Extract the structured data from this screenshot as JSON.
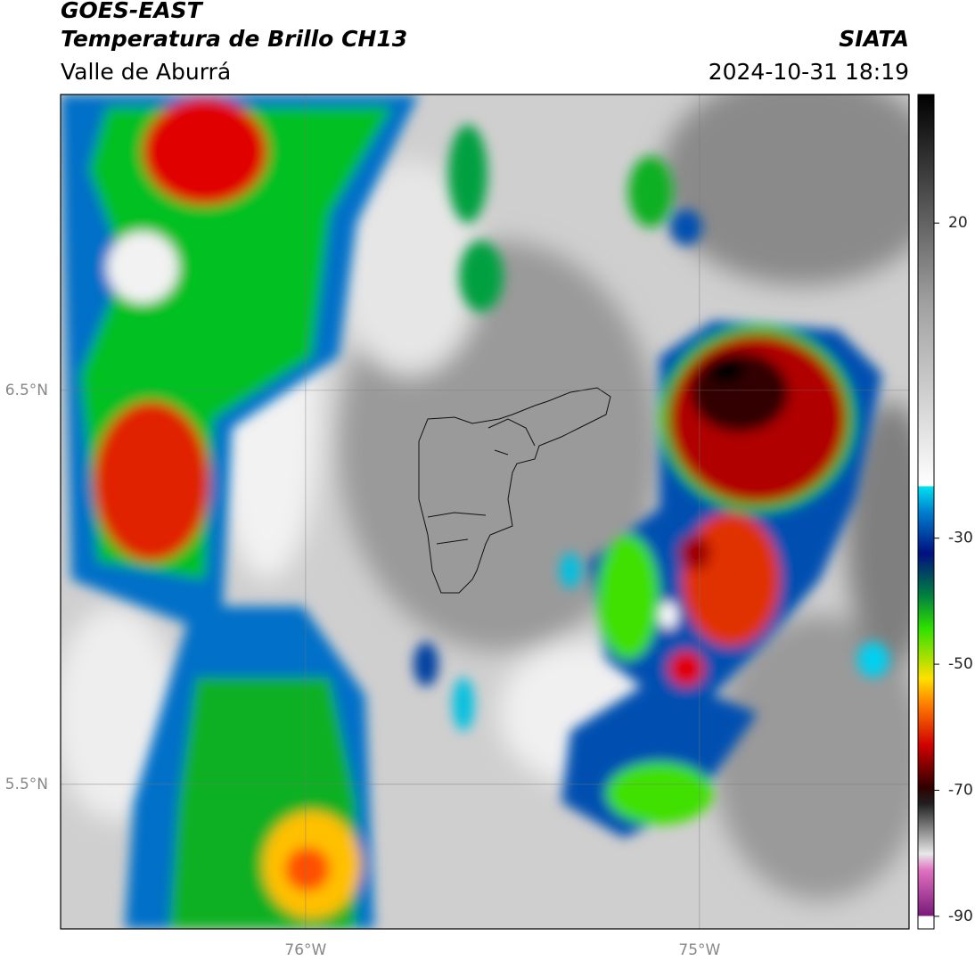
{
  "header": {
    "title": "GOES-EAST",
    "subtitle": "Temperatura de Brillo CH13",
    "region": "Valle de Aburrá",
    "source": "SIATA",
    "timestamp": "2024-10-31 18:19"
  },
  "map": {
    "lonlim": [
      -76.622,
      -74.468
    ],
    "latlim": [
      5.133,
      7.251
    ],
    "lonticks": [
      {
        "value": -76,
        "label": "76°W"
      },
      {
        "value": -75,
        "label": "75°W"
      }
    ],
    "latticks": [
      {
        "value": 6.5,
        "label": "6.5°N"
      },
      {
        "value": 5.5,
        "label": "5.5°N"
      }
    ],
    "grid": true
  },
  "colorbar": {
    "lim": [
      -92,
      40.4
    ],
    "ticks": [
      20,
      -30,
      -50,
      -70,
      -90
    ]
  }
}
